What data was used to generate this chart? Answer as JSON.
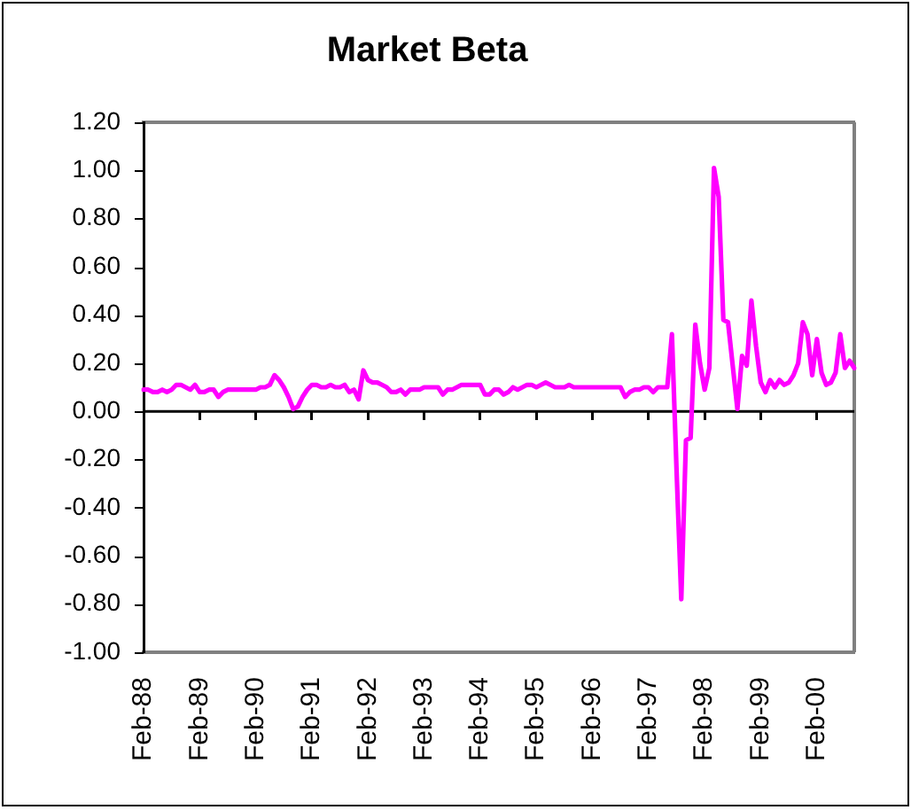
{
  "chart_data": {
    "type": "line",
    "title": "Market Beta",
    "categories": [
      "Feb-88",
      null,
      null,
      null,
      null,
      null,
      null,
      null,
      null,
      null,
      null,
      null,
      "Feb-89",
      null,
      null,
      null,
      null,
      null,
      null,
      null,
      null,
      null,
      null,
      null,
      "Feb-90",
      null,
      null,
      null,
      null,
      null,
      null,
      null,
      null,
      null,
      null,
      null,
      "Feb-91",
      null,
      null,
      null,
      null,
      null,
      null,
      null,
      null,
      null,
      null,
      null,
      "Feb-92",
      null,
      null,
      null,
      null,
      null,
      null,
      null,
      null,
      null,
      null,
      null,
      "Feb-93",
      null,
      null,
      null,
      null,
      null,
      null,
      null,
      null,
      null,
      null,
      null,
      "Feb-94",
      null,
      null,
      null,
      null,
      null,
      null,
      null,
      null,
      null,
      null,
      null,
      "Feb-95",
      null,
      null,
      null,
      null,
      null,
      null,
      null,
      null,
      null,
      null,
      null,
      "Feb-96",
      null,
      null,
      null,
      null,
      null,
      null,
      null,
      null,
      null,
      null,
      null,
      "Feb-97",
      null,
      null,
      null,
      null,
      null,
      null,
      null,
      null,
      null,
      null,
      null,
      "Feb-98",
      null,
      null,
      null,
      null,
      null,
      null,
      null,
      null,
      null,
      null,
      null,
      "Feb-99",
      null,
      null,
      null,
      null,
      null,
      null,
      null,
      null,
      null,
      null,
      null,
      "Feb-00",
      null,
      null,
      null,
      null,
      null,
      null,
      null,
      null
    ],
    "values": [
      0.09,
      0.09,
      0.08,
      0.08,
      0.09,
      0.08,
      0.09,
      0.11,
      0.11,
      0.1,
      0.09,
      0.11,
      0.08,
      0.08,
      0.09,
      0.09,
      0.06,
      0.08,
      0.09,
      0.09,
      0.09,
      0.09,
      0.09,
      0.09,
      0.09,
      0.1,
      0.1,
      0.11,
      0.15,
      0.13,
      0.1,
      0.06,
      0.01,
      0.02,
      0.06,
      0.09,
      0.11,
      0.11,
      0.1,
      0.1,
      0.11,
      0.1,
      0.1,
      0.11,
      0.08,
      0.09,
      0.05,
      0.17,
      0.13,
      0.12,
      0.12,
      0.11,
      0.1,
      0.08,
      0.08,
      0.09,
      0.07,
      0.09,
      0.09,
      0.09,
      0.1,
      0.1,
      0.1,
      0.1,
      0.07,
      0.09,
      0.09,
      0.1,
      0.11,
      0.11,
      0.11,
      0.11,
      0.11,
      0.07,
      0.07,
      0.09,
      0.09,
      0.07,
      0.08,
      0.1,
      0.09,
      0.1,
      0.11,
      0.11,
      0.1,
      0.11,
      0.12,
      0.11,
      0.1,
      0.1,
      0.1,
      0.11,
      0.1,
      0.1,
      0.1,
      0.1,
      0.1,
      0.1,
      0.1,
      0.1,
      0.1,
      0.1,
      0.1,
      0.06,
      0.08,
      0.09,
      0.09,
      0.1,
      0.1,
      0.08,
      0.1,
      0.1,
      0.1,
      0.32,
      -0.25,
      -0.78,
      -0.12,
      -0.11,
      0.36,
      0.2,
      0.09,
      0.18,
      1.01,
      0.89,
      0.38,
      0.37,
      0.19,
      0.01,
      0.23,
      0.19,
      0.46,
      0.27,
      0.12,
      0.08,
      0.13,
      0.1,
      0.13,
      0.11,
      0.12,
      0.15,
      0.2,
      0.37,
      0.32,
      0.15,
      0.3,
      0.16,
      0.11,
      0.12,
      0.16,
      0.32,
      0.18,
      0.21,
      0.18
    ],
    "color": "#ff00ff",
    "ylim": [
      -1,
      1.2
    ],
    "yticks": [
      {
        "value": -1,
        "label": "-1.00"
      },
      {
        "value": -0.8,
        "label": "-0.80"
      },
      {
        "value": -0.6,
        "label": "-0.60"
      },
      {
        "value": -0.4,
        "label": "-0.40"
      },
      {
        "value": -0.2,
        "label": "-0.20"
      },
      {
        "value": 0,
        "label": "0.00"
      },
      {
        "value": 0.2,
        "label": "0.20"
      },
      {
        "value": 0.4,
        "label": "0.40"
      },
      {
        "value": 0.6,
        "label": "0.60"
      },
      {
        "value": 0.8,
        "label": "0.80"
      },
      {
        "value": 1,
        "label": "1.00"
      },
      {
        "value": 1.2,
        "label": "1.20"
      }
    ],
    "ref_lines": [
      {
        "axis": "y",
        "value": 0,
        "color": "#000000"
      }
    ],
    "grid": false,
    "legend": false,
    "marker": "none",
    "line_style": "solid"
  }
}
